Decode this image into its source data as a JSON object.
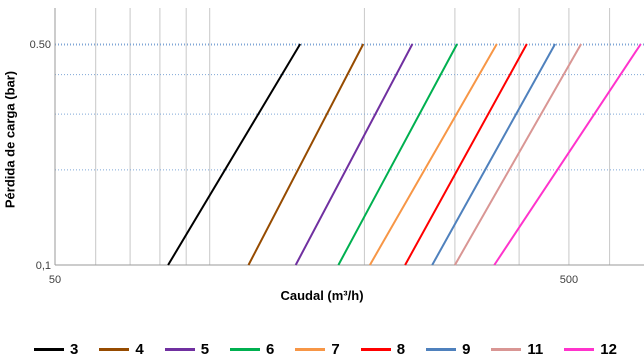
{
  "chart_data": {
    "type": "line",
    "title": "",
    "xlabel": "Caudal (m³/h)",
    "ylabel": "Pérdida de carga (bar)",
    "x_scale": "log",
    "y_scale": "log",
    "xlim": [
      50,
      700
    ],
    "ylim": [
      0.1,
      0.65
    ],
    "x_tick_labels": [
      {
        "value": 50,
        "label": "50"
      },
      {
        "value": 500,
        "label": "500"
      }
    ],
    "y_tick_labels": [
      {
        "value": 0.1,
        "label": "0,1"
      },
      {
        "value": 0.5,
        "label": "0.50"
      }
    ],
    "grid": true,
    "legend_position": "bottom",
    "series": [
      {
        "name": "3",
        "color": "#000000",
        "x": [
          83,
          150
        ],
        "y": [
          0.1,
          0.5
        ]
      },
      {
        "name": "4",
        "color": "#964b00",
        "x": [
          119,
          199
        ],
        "y": [
          0.1,
          0.5
        ]
      },
      {
        "name": "5",
        "color": "#7030a0",
        "x": [
          147,
          248
        ],
        "y": [
          0.1,
          0.5
        ]
      },
      {
        "name": "6",
        "color": "#00b050",
        "x": [
          178,
          303
        ],
        "y": [
          0.1,
          0.5
        ]
      },
      {
        "name": "7",
        "color": "#f79646",
        "x": [
          205,
          362
        ],
        "y": [
          0.1,
          0.5
        ]
      },
      {
        "name": "8",
        "color": "#ff0000",
        "x": [
          240,
          414
        ],
        "y": [
          0.1,
          0.5
        ]
      },
      {
        "name": "9",
        "color": "#4f81bd",
        "x": [
          271,
          470
        ],
        "y": [
          0.1,
          0.5
        ]
      },
      {
        "name": "11",
        "color": "#d99694",
        "x": [
          300,
          528
        ],
        "y": [
          0.1,
          0.5
        ]
      },
      {
        "name": "12",
        "color": "#ff33cc",
        "x": [
          358,
          690
        ],
        "y": [
          0.1,
          0.5
        ]
      }
    ]
  }
}
